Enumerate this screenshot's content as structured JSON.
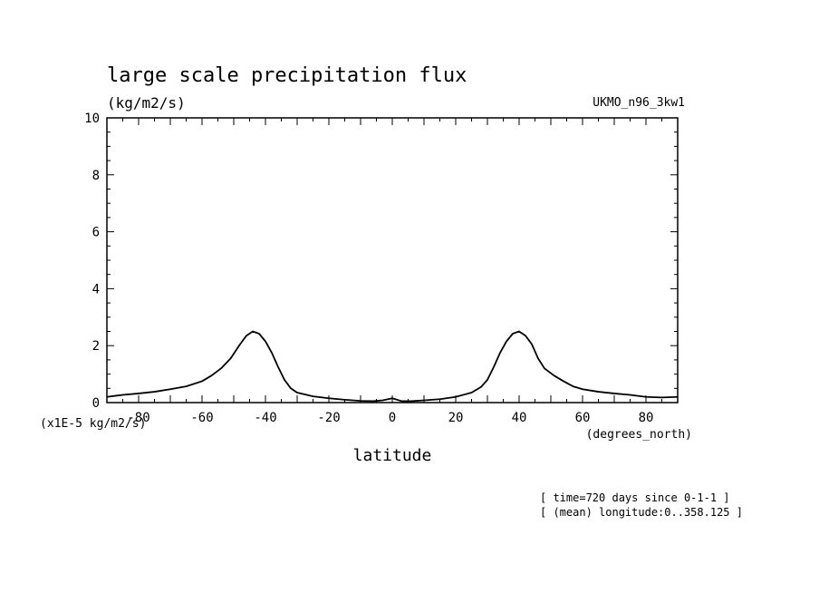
{
  "chart_data": {
    "type": "line",
    "title": "large scale precipitation flux",
    "units_label": "(kg/m2/s)",
    "dataset_label": "UKMO_n96_3kw1",
    "scale_label": "(x1E-5 kg/m2/s)",
    "xlabel": "latitude",
    "xunits_label": "(degrees_north)",
    "notes": [
      "[ time=720 days since 0-1-1 ]",
      "[ (mean) longitude:0..358.125 ]"
    ],
    "xlim": [
      -90,
      90
    ],
    "ylim": [
      0,
      10
    ],
    "x_ticks": [
      -80,
      -60,
      -40,
      -20,
      0,
      20,
      40,
      60,
      80
    ],
    "x_tick_labels": [
      "-80",
      "-60",
      "-40",
      "-20",
      "0",
      "20",
      "40",
      "60",
      "80"
    ],
    "y_ticks": [
      0,
      2,
      4,
      6,
      8,
      10
    ],
    "y_tick_labels": [
      "0",
      "2",
      "4",
      "6",
      "8",
      "10"
    ],
    "grid": false,
    "series": [
      {
        "color": "#000000",
        "x": [
          -90,
          -85,
          -80,
          -75,
          -70,
          -65,
          -60,
          -57,
          -54,
          -51,
          -48,
          -46,
          -44,
          -42,
          -40,
          -38,
          -36,
          -34,
          -32,
          -30,
          -28,
          -25,
          -20,
          -15,
          -10,
          -6,
          -3,
          0,
          3,
          6,
          10,
          15,
          20,
          25,
          28,
          30,
          32,
          34,
          36,
          38,
          40,
          42,
          44,
          46,
          48,
          51,
          54,
          57,
          60,
          65,
          70,
          75,
          80,
          85,
          90
        ],
        "y": [
          0.2,
          0.27,
          0.32,
          0.38,
          0.47,
          0.57,
          0.75,
          0.95,
          1.2,
          1.55,
          2.05,
          2.35,
          2.5,
          2.42,
          2.15,
          1.75,
          1.25,
          0.8,
          0.5,
          0.35,
          0.3,
          0.22,
          0.15,
          0.1,
          0.06,
          0.05,
          0.08,
          0.15,
          0.05,
          0.05,
          0.08,
          0.12,
          0.2,
          0.35,
          0.55,
          0.8,
          1.25,
          1.75,
          2.15,
          2.42,
          2.5,
          2.35,
          2.05,
          1.55,
          1.2,
          0.95,
          0.75,
          0.57,
          0.47,
          0.38,
          0.32,
          0.27,
          0.2,
          0.18,
          0.2
        ]
      }
    ]
  }
}
